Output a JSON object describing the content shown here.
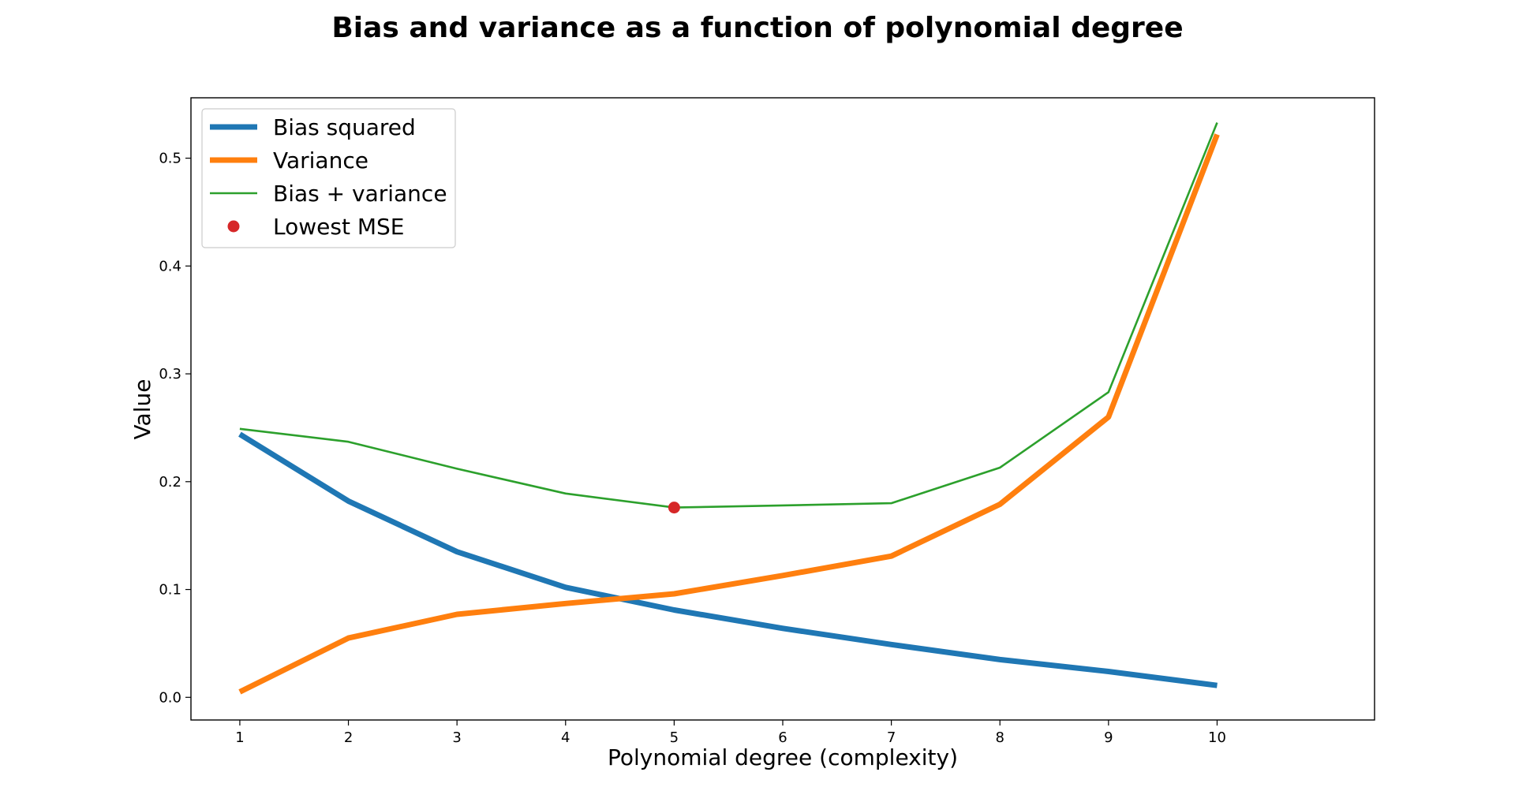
{
  "chart_data": {
    "type": "line",
    "title": "Bias and variance as a function of polynomial degree",
    "xlabel": "Polynomial degree (complexity)",
    "ylabel": "Value",
    "x": [
      1,
      2,
      3,
      4,
      5,
      6,
      7,
      8,
      9,
      10
    ],
    "xlim": [
      0.55,
      11.45
    ],
    "ylim": [
      -0.021,
      0.556
    ],
    "xticks": [
      "1",
      "2",
      "3",
      "4",
      "5",
      "6",
      "7",
      "8",
      "9",
      "10"
    ],
    "yticks": [
      "0.0",
      "0.1",
      "0.2",
      "0.3",
      "0.4",
      "0.5"
    ],
    "grid": false,
    "legend_position": "upper-left",
    "series": [
      {
        "name": "Bias squared",
        "color": "#1f77b4",
        "style": "thick-line",
        "values": [
          0.244,
          0.182,
          0.135,
          0.102,
          0.081,
          0.064,
          0.049,
          0.035,
          0.024,
          0.011
        ]
      },
      {
        "name": "Variance",
        "color": "#ff7f0e",
        "style": "thick-line",
        "values": [
          0.005,
          0.055,
          0.077,
          0.087,
          0.096,
          0.113,
          0.131,
          0.179,
          0.26,
          0.522
        ]
      },
      {
        "name": "Bias + variance",
        "color": "#2ca02c",
        "style": "thin-line",
        "values": [
          0.249,
          0.237,
          0.212,
          0.189,
          0.176,
          0.178,
          0.18,
          0.213,
          0.283,
          0.533
        ]
      }
    ],
    "marker": {
      "name": "Lowest MSE",
      "color": "#d62728",
      "x": 5,
      "y": 0.176
    }
  }
}
